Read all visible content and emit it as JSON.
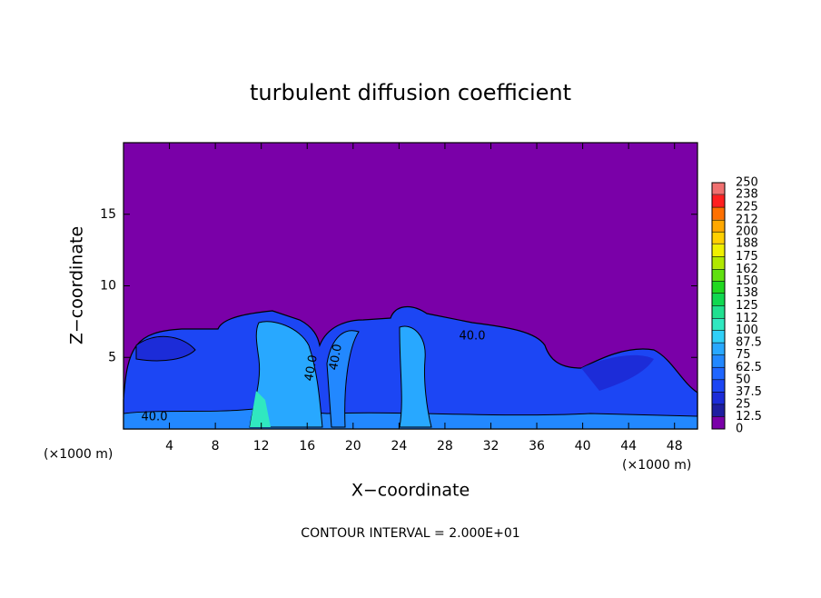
{
  "chart_data": {
    "type": "contour",
    "title": "turbulent diffusion coefficient",
    "x_label": "X−coordinate",
    "y_label": "Z−coordinate",
    "x_unit": "(×1000 m)",
    "y_unit": "(×1000 m)",
    "xlim": [
      0,
      50
    ],
    "xticks": [
      4,
      8,
      12,
      16,
      20,
      24,
      28,
      32,
      36,
      40,
      44,
      48
    ],
    "ylim": [
      0,
      20
    ],
    "yticks": [
      5,
      10,
      15
    ],
    "contour_labels": [
      "40.0",
      "40.0",
      "40.0",
      "40.0"
    ],
    "footer": "CONTOUR INTERVAL = 2.000E+01",
    "colorbar": {
      "lim": [
        0,
        250
      ],
      "ticks": [
        0,
        12.5,
        25,
        37.5,
        50,
        62.5,
        75,
        87.5,
        100,
        112,
        125,
        138,
        150,
        162,
        175,
        188,
        200,
        212,
        225,
        238,
        250
      ],
      "colors": [
        "#7a00a8",
        "#1e1ea0",
        "#1c2cd8",
        "#1c46f4",
        "#1f66ff",
        "#2288ff",
        "#28a8ff",
        "#30d0f8",
        "#30e8c0",
        "#20e090",
        "#10d850",
        "#20d820",
        "#60e010",
        "#b0e800",
        "#f0f000",
        "#ffd000",
        "#ffa800",
        "#ff7000",
        "#ff2020",
        "#f07070"
      ]
    }
  }
}
